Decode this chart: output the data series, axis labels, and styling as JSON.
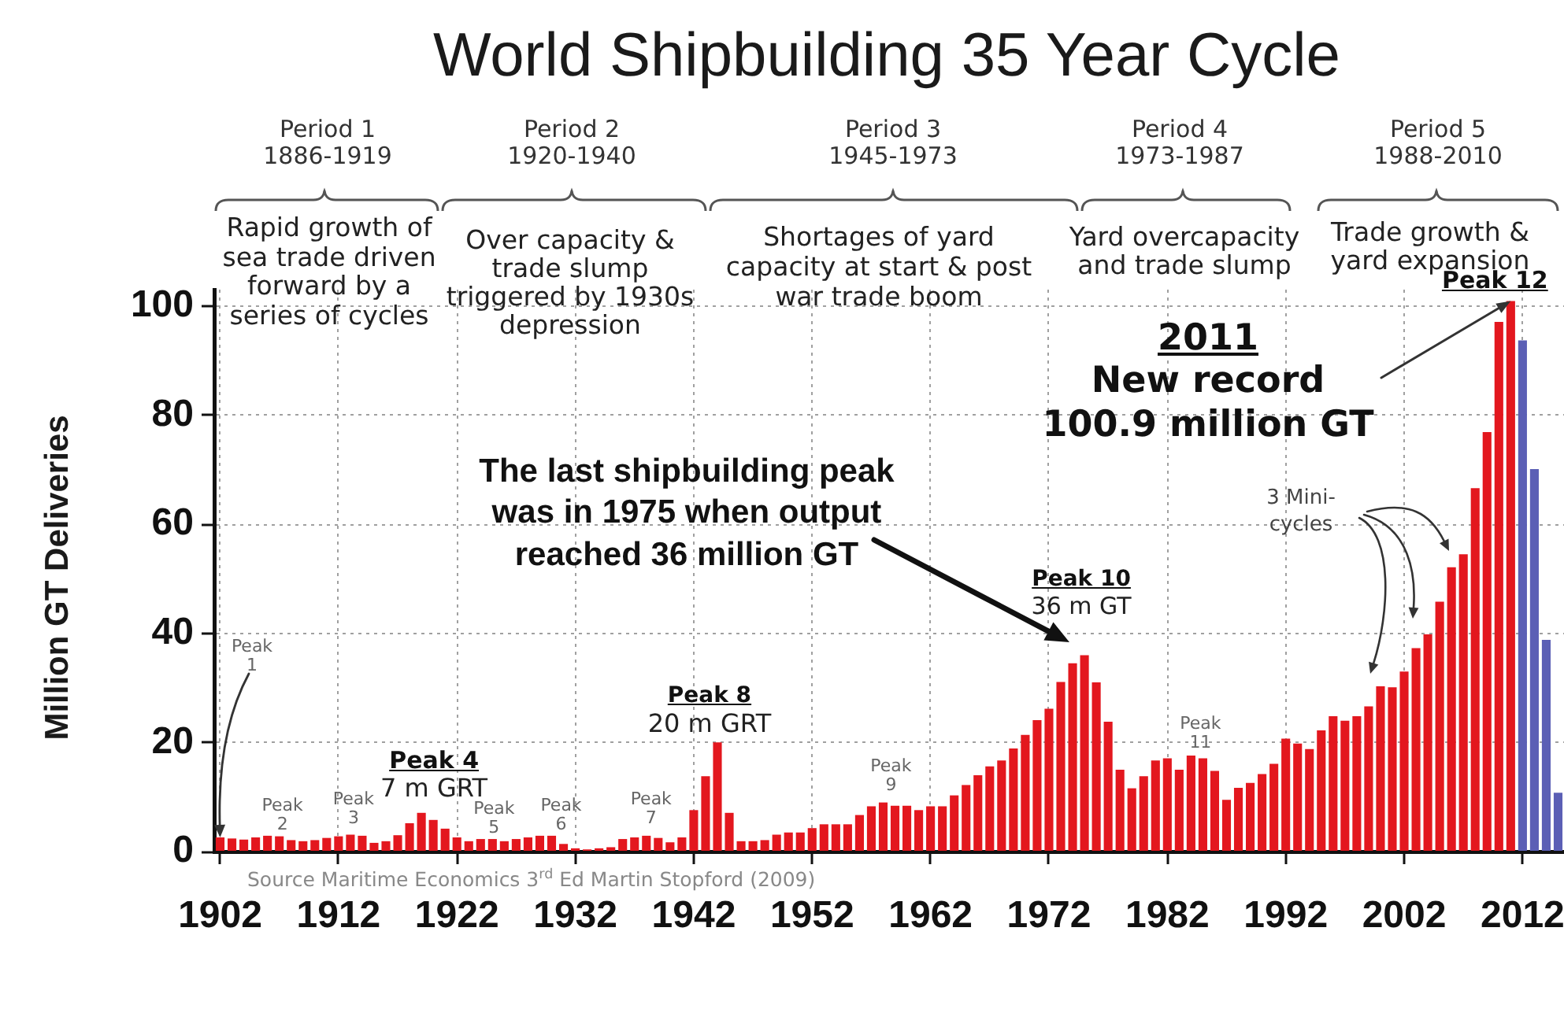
{
  "chart_data": {
    "type": "bar",
    "title": "World Shipbuilding 35 Year Cycle",
    "ylabel": "Million GT Deliveries",
    "x": [
      1902,
      1903,
      1904,
      1905,
      1906,
      1907,
      1908,
      1909,
      1910,
      1911,
      1912,
      1913,
      1914,
      1915,
      1916,
      1917,
      1918,
      1919,
      1920,
      1921,
      1922,
      1923,
      1924,
      1925,
      1926,
      1927,
      1928,
      1929,
      1930,
      1931,
      1932,
      1933,
      1934,
      1935,
      1936,
      1937,
      1938,
      1939,
      1940,
      1941,
      1942,
      1943,
      1944,
      1945,
      1946,
      1947,
      1948,
      1949,
      1950,
      1951,
      1952,
      1953,
      1954,
      1955,
      1956,
      1957,
      1958,
      1959,
      1960,
      1961,
      1962,
      1963,
      1964,
      1965,
      1966,
      1967,
      1968,
      1969,
      1970,
      1971,
      1972,
      1973,
      1974,
      1975,
      1976,
      1977,
      1978,
      1979,
      1980,
      1981,
      1982,
      1983,
      1984,
      1985,
      1986,
      1987,
      1988,
      1989,
      1990,
      1991,
      1992,
      1993,
      1994,
      1995,
      1996,
      1997,
      1998,
      1999,
      2000,
      2001,
      2002,
      2003,
      2004,
      2005,
      2006,
      2007,
      2008,
      2009,
      2010,
      2011,
      2012,
      2013,
      2014,
      2015
    ],
    "values": [
      2.6,
      2.4,
      2.2,
      2.6,
      2.9,
      2.8,
      2.1,
      1.9,
      2.1,
      2.5,
      2.8,
      3.1,
      2.9,
      1.6,
      1.9,
      3.0,
      5.2,
      7.1,
      5.8,
      4.2,
      2.6,
      1.9,
      2.3,
      2.3,
      1.9,
      2.3,
      2.6,
      2.9,
      2.9,
      1.4,
      0.6,
      0.4,
      0.6,
      0.8,
      2.3,
      2.6,
      2.9,
      2.5,
      1.7,
      2.6,
      7.6,
      13.8,
      20,
      7.1,
      1.9,
      1.9,
      2.1,
      3.1,
      3.5,
      3.5,
      4.3,
      5.0,
      5.0,
      5.0,
      6.7,
      8.3,
      9.0,
      8.4,
      8.4,
      7.6,
      8.3,
      8.3,
      10.3,
      12.2,
      14.0,
      15.6,
      16.7,
      18.9,
      21.4,
      24.1,
      26.2,
      31.1,
      34.5,
      36,
      31.0,
      23.8,
      15.0,
      11.6,
      13.8,
      16.7,
      17.1,
      15.0,
      17.6,
      17.1,
      14.8,
      9.5,
      11.7,
      12.6,
      14.2,
      16.1,
      20.7,
      19.8,
      18.8,
      22.2,
      24.8,
      24.0,
      24.8,
      26.6,
      30.3,
      30.1,
      33.0,
      37.3,
      39.8,
      45.8,
      52.1,
      54.5,
      66.6,
      76.9,
      97.1,
      100.9,
      93.7,
      70.1,
      38.8,
      10.8
    ],
    "colors": [
      "#e3171e",
      "#e3171e",
      "#e3171e",
      "#e3171e",
      "#e3171e",
      "#e3171e",
      "#e3171e",
      "#e3171e",
      "#e3171e",
      "#e3171e",
      "#e3171e",
      "#e3171e",
      "#e3171e",
      "#e3171e",
      "#e3171e",
      "#e3171e",
      "#e3171e",
      "#e3171e",
      "#e3171e",
      "#e3171e",
      "#e3171e",
      "#e3171e",
      "#e3171e",
      "#e3171e",
      "#e3171e",
      "#e3171e",
      "#e3171e",
      "#e3171e",
      "#e3171e",
      "#e3171e",
      "#e3171e",
      "#e3171e",
      "#e3171e",
      "#e3171e",
      "#e3171e",
      "#e3171e",
      "#e3171e",
      "#e3171e",
      "#e3171e",
      "#e3171e",
      "#e3171e",
      "#e3171e",
      "#e3171e",
      "#e3171e",
      "#e3171e",
      "#e3171e",
      "#e3171e",
      "#e3171e",
      "#e3171e",
      "#e3171e",
      "#e3171e",
      "#e3171e",
      "#e3171e",
      "#e3171e",
      "#e3171e",
      "#e3171e",
      "#e3171e",
      "#e3171e",
      "#e3171e",
      "#e3171e",
      "#e3171e",
      "#e3171e",
      "#e3171e",
      "#e3171e",
      "#e3171e",
      "#e3171e",
      "#e3171e",
      "#e3171e",
      "#e3171e",
      "#e3171e",
      "#e3171e",
      "#e3171e",
      "#e3171e",
      "#e3171e",
      "#e3171e",
      "#e3171e",
      "#e3171e",
      "#e3171e",
      "#e3171e",
      "#e3171e",
      "#e3171e",
      "#e3171e",
      "#e3171e",
      "#e3171e",
      "#e3171e",
      "#e3171e",
      "#e3171e",
      "#e3171e",
      "#e3171e",
      "#e3171e",
      "#e3171e",
      "#e3171e",
      "#e3171e",
      "#e3171e",
      "#e3171e",
      "#e3171e",
      "#e3171e",
      "#e3171e",
      "#e3171e",
      "#e3171e",
      "#e3171e",
      "#e3171e",
      "#e3171e",
      "#e3171e",
      "#e3171e",
      "#e3171e",
      "#e3171e",
      "#e3171e",
      "#e3171e",
      "#e3171e",
      "#5b5fb5",
      "#5b5fb5",
      "#5b5fb5",
      "#5b5fb5"
    ],
    "xlim": [
      1901.5,
      2015.5
    ],
    "xticks": [
      1902,
      1912,
      1922,
      1932,
      1942,
      1952,
      1962,
      1972,
      1982,
      1992,
      2002,
      2012
    ],
    "ylim": [
      0,
      103
    ],
    "yticks": [
      0,
      20,
      40,
      60,
      80,
      100
    ],
    "grid": true,
    "annotations": [
      "Period 1\n1886-1919",
      "Period 2\n1920-1940",
      "Period 3\n1945-1973",
      "Period 4\n1973-1987",
      "Period 5\n1988-2010",
      "Rapid growth of\nsea trade driven\nforward by a\nseries of cycles",
      "Over capacity &\ntrade slump\ntriggered by 1930s\ndepression",
      "Shortages of yard\ncapacity at start & post\nwar trade boom",
      "Yard overcapacity\nand trade slump",
      "Trade growth &\nyard expansion",
      {
        "text": "Peak\n1",
        "x": 1902,
        "y": 2.6
      },
      {
        "text": "Peak\n2",
        "x": 1907,
        "y": 2.8
      },
      {
        "text": "Peak\n3",
        "x": 1913,
        "y": 3.1
      },
      {
        "text": "Peak 4\n7 m GRT",
        "x": 1919,
        "y": 7.1
      },
      {
        "text": "Peak\n5",
        "x": 1925,
        "y": 2.3
      },
      {
        "text": "Peak\n6",
        "x": 1930,
        "y": 2.9
      },
      {
        "text": "Peak\n7",
        "x": 1938,
        "y": 2.9
      },
      {
        "text": "Peak 8\n20 m GRT",
        "x": 1944,
        "y": 20
      },
      {
        "text": "Peak\n9",
        "x": 1958,
        "y": 9.0
      },
      {
        "text": "Peak 10\n36 m GT",
        "x": 1975,
        "y": 36
      },
      {
        "text": "Peak\n11",
        "x": 1984,
        "y": 17.6
      },
      {
        "text": "Peak 12",
        "x": 2011,
        "y": 100.9
      },
      {
        "text": "2011\nNew record\n100.9 million GT",
        "x": 2011,
        "y": 100.9
      },
      "The last shipbuilding peak\nwas in 1975 when output\nreached 36 million GT",
      "3 Mini-\ncycles",
      "Source Maritime Economics 3$^{rd}$ Ed Martin Stopford (2009)"
    ]
  }
}
